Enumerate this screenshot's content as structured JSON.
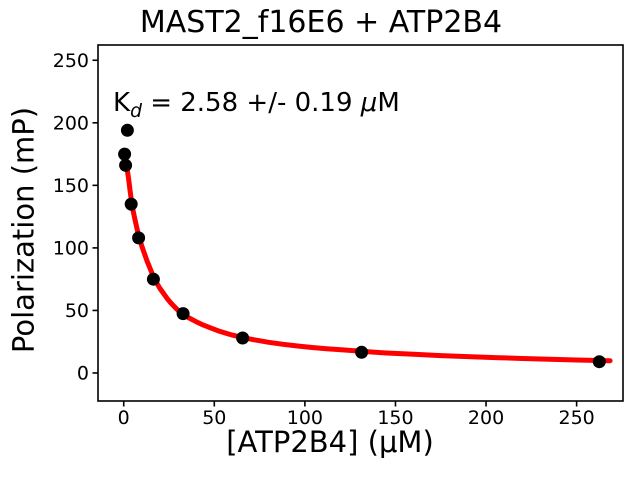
{
  "chart_data": {
    "type": "scatter",
    "title": "MAST2_f16E6 + ATP2B4",
    "xlabel": "[ATP2B4] (μM)",
    "ylabel": "Polarization (mP)",
    "annotation": {
      "text": "Kd = 2.58 +/- 0.19 μM",
      "prefix": "K",
      "subscript": "d",
      "value_text": " = 2.58 +/- 0.19 ",
      "mu": "μ",
      "unit": "M"
    },
    "kd_um": 2.58,
    "kd_err_um": 0.19,
    "xlim": [
      -14.2,
      275.6
    ],
    "ylim": [
      -22.4,
      262.2
    ],
    "x_ticks": [
      0,
      50,
      100,
      150,
      200,
      250
    ],
    "y_ticks": [
      0,
      50,
      100,
      150,
      200,
      250
    ],
    "grid": false,
    "legend": "none",
    "series": [
      {
        "name": "binding-fit",
        "type": "line",
        "color": "#ff0000",
        "points": [
          [
            0,
            177
          ],
          [
            0.5,
            174
          ],
          [
            1,
            170.5
          ],
          [
            1.5,
            166.5
          ],
          [
            2,
            162
          ],
          [
            2.5,
            157
          ],
          [
            3,
            151.5
          ],
          [
            3.5,
            145.5
          ],
          [
            4.1,
            139
          ],
          [
            4.5,
            135
          ],
          [
            5,
            131
          ],
          [
            5.5,
            127.5
          ],
          [
            6,
            124
          ],
          [
            7,
            117.5
          ],
          [
            8.2,
            110
          ],
          [
            9,
            106
          ],
          [
            10,
            101.5
          ],
          [
            11,
            97
          ],
          [
            12,
            93
          ],
          [
            13,
            89
          ],
          [
            14,
            85.5
          ],
          [
            15,
            82
          ],
          [
            16.4,
            77
          ],
          [
            18,
            72.5
          ],
          [
            20,
            67.5
          ],
          [
            22,
            63.5
          ],
          [
            24,
            59.5
          ],
          [
            26,
            56
          ],
          [
            28,
            53
          ],
          [
            30,
            50
          ],
          [
            32.8,
            47
          ],
          [
            36,
            44
          ],
          [
            40,
            41
          ],
          [
            44,
            38.3
          ],
          [
            48,
            36
          ],
          [
            52,
            33.8
          ],
          [
            56,
            32
          ],
          [
            60,
            30.3
          ],
          [
            65.6,
            28.3
          ],
          [
            72,
            26.5
          ],
          [
            80,
            24.5
          ],
          [
            88,
            22.9
          ],
          [
            96,
            21.6
          ],
          [
            104,
            20.4
          ],
          [
            112,
            19.4
          ],
          [
            120,
            18.5
          ],
          [
            131.3,
            17.3
          ],
          [
            145,
            16
          ],
          [
            160,
            14.9
          ],
          [
            175,
            13.9
          ],
          [
            190,
            13.1
          ],
          [
            205,
            12.3
          ],
          [
            220,
            11.6
          ],
          [
            235,
            11
          ],
          [
            250,
            10.4
          ],
          [
            262.5,
            10
          ],
          [
            268.5,
            9.8
          ]
        ]
      },
      {
        "name": "measured-polarization",
        "type": "scatter",
        "color": "#000000",
        "points": [
          [
            0.51,
            175
          ],
          [
            1.03,
            166
          ],
          [
            2.05,
            194
          ],
          [
            4.1,
            135
          ],
          [
            8.2,
            108
          ],
          [
            16.4,
            75
          ],
          [
            32.8,
            47.5
          ],
          [
            65.6,
            28
          ],
          [
            131.3,
            16.5
          ],
          [
            262.5,
            9
          ]
        ]
      }
    ],
    "colors": {
      "axis": "#000000",
      "background": "#ffffff",
      "fit_line": "#ff0000",
      "points": "#000000"
    }
  }
}
